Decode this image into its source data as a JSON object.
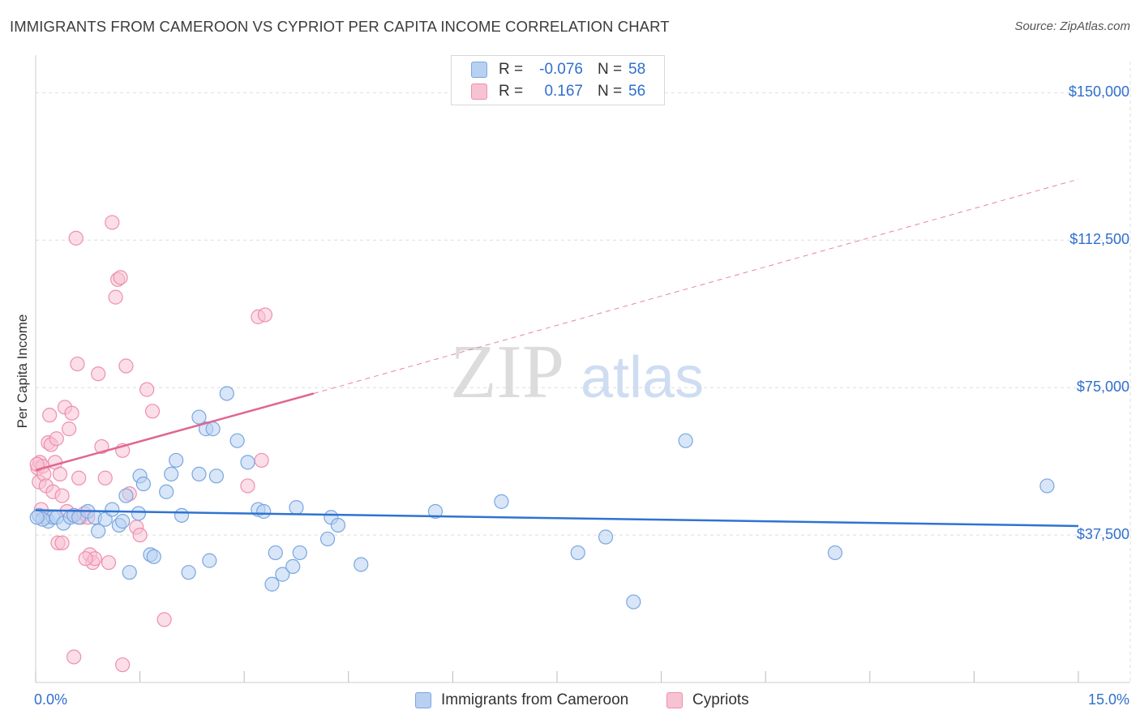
{
  "title": "IMMIGRANTS FROM CAMEROON VS CYPRIOT PER CAPITA INCOME CORRELATION CHART",
  "source": "Source: ZipAtlas.com",
  "watermark": {
    "zip": "ZIP",
    "atlas": "atlas"
  },
  "legend_top": {
    "rows": [
      {
        "r_label": "R =",
        "r_value": "-0.076",
        "n_label": "N =",
        "n_value": "58"
      },
      {
        "r_label": "R =",
        "r_value": "0.167",
        "n_label": "N =",
        "n_value": "56"
      }
    ]
  },
  "legend_bottom": [
    {
      "label": "Immigrants from Cameroon"
    },
    {
      "label": "Cypriots"
    }
  ],
  "colors": {
    "blue_fill": "#b8d1f2",
    "blue_stroke": "#7aa6e0",
    "blue_line": "#2f73d0",
    "pink_fill": "#f7c3d3",
    "pink_stroke": "#ee8fae",
    "pink_line": "#e0668f",
    "tick_text": "#2f6fce",
    "grid": "#dddddd"
  },
  "chart_data": {
    "type": "scatter",
    "title": "IMMIGRANTS FROM CAMEROON VS CYPRIOT PER CAPITA INCOME CORRELATION CHART",
    "xlabel": "",
    "ylabel": "Per Capita Income",
    "xlim": [
      0,
      15
    ],
    "ylim": [
      0,
      157500
    ],
    "x_tick_labels": [
      "0.0%",
      "15.0%"
    ],
    "y_ticks": [
      37500,
      75000,
      112500,
      150000
    ],
    "y_tick_labels": [
      "$37,500",
      "$75,000",
      "$112,500",
      "$150,000"
    ],
    "grid": true,
    "legend_position": "top-center",
    "series": [
      {
        "name": "Immigrants from Cameroon",
        "points": [
          [
            0.05,
            42500
          ],
          [
            0.18,
            41000
          ],
          [
            0.25,
            42000
          ],
          [
            0.3,
            42000
          ],
          [
            0.4,
            40500
          ],
          [
            0.5,
            42000
          ],
          [
            0.55,
            42500
          ],
          [
            0.62,
            42000
          ],
          [
            0.75,
            43500
          ],
          [
            0.85,
            42000
          ],
          [
            0.9,
            38500
          ],
          [
            1.0,
            41500
          ],
          [
            1.1,
            44000
          ],
          [
            1.2,
            40000
          ],
          [
            1.25,
            41000
          ],
          [
            1.3,
            47500
          ],
          [
            1.35,
            28000
          ],
          [
            1.48,
            43000
          ],
          [
            1.5,
            52500
          ],
          [
            1.55,
            50500
          ],
          [
            1.65,
            32500
          ],
          [
            1.7,
            32000
          ],
          [
            1.88,
            48500
          ],
          [
            1.95,
            53000
          ],
          [
            2.02,
            56500
          ],
          [
            2.1,
            42500
          ],
          [
            2.2,
            28000
          ],
          [
            2.35,
            53000
          ],
          [
            2.35,
            67500
          ],
          [
            2.45,
            64500
          ],
          [
            2.5,
            31000
          ],
          [
            2.55,
            64500
          ],
          [
            2.6,
            52500
          ],
          [
            2.75,
            73500
          ],
          [
            2.9,
            61500
          ],
          [
            3.05,
            56000
          ],
          [
            3.2,
            44000
          ],
          [
            3.28,
            43500
          ],
          [
            3.4,
            25000
          ],
          [
            3.45,
            33000
          ],
          [
            3.55,
            27500
          ],
          [
            3.7,
            29500
          ],
          [
            3.75,
            44500
          ],
          [
            3.8,
            33000
          ],
          [
            4.2,
            36500
          ],
          [
            4.25,
            42000
          ],
          [
            4.35,
            40000
          ],
          [
            4.68,
            30000
          ],
          [
            5.75,
            43500
          ],
          [
            6.7,
            46000
          ],
          [
            7.8,
            33000
          ],
          [
            8.2,
            37000
          ],
          [
            8.6,
            20500
          ],
          [
            9.35,
            61500
          ],
          [
            11.5,
            33000
          ],
          [
            14.55,
            50000
          ],
          [
            0.1,
            41500
          ],
          [
            0.02,
            42000
          ]
        ]
      },
      {
        "name": "Cypriots",
        "points": [
          [
            0.03,
            54500
          ],
          [
            0.05,
            51000
          ],
          [
            0.06,
            56000
          ],
          [
            0.1,
            55000
          ],
          [
            0.12,
            53000
          ],
          [
            0.15,
            50000
          ],
          [
            0.18,
            61000
          ],
          [
            0.2,
            68000
          ],
          [
            0.22,
            60500
          ],
          [
            0.25,
            48500
          ],
          [
            0.28,
            56000
          ],
          [
            0.3,
            62000
          ],
          [
            0.32,
            35500
          ],
          [
            0.35,
            53000
          ],
          [
            0.38,
            47500
          ],
          [
            0.42,
            70000
          ],
          [
            0.45,
            43500
          ],
          [
            0.48,
            64500
          ],
          [
            0.52,
            68500
          ],
          [
            0.55,
            42500
          ],
          [
            0.58,
            113000
          ],
          [
            0.6,
            81000
          ],
          [
            0.62,
            52000
          ],
          [
            0.65,
            42000
          ],
          [
            0.7,
            43000
          ],
          [
            0.75,
            42000
          ],
          [
            0.78,
            32500
          ],
          [
            0.82,
            30500
          ],
          [
            0.85,
            31500
          ],
          [
            0.9,
            78500
          ],
          [
            0.95,
            60000
          ],
          [
            1.0,
            52000
          ],
          [
            1.05,
            30500
          ],
          [
            1.1,
            117000
          ],
          [
            1.15,
            98000
          ],
          [
            1.18,
            102500
          ],
          [
            1.22,
            103000
          ],
          [
            1.25,
            59000
          ],
          [
            1.3,
            80500
          ],
          [
            1.35,
            48000
          ],
          [
            1.45,
            39500
          ],
          [
            1.5,
            37500
          ],
          [
            1.6,
            74500
          ],
          [
            1.68,
            69000
          ],
          [
            1.85,
            16000
          ],
          [
            0.55,
            6500
          ],
          [
            1.25,
            4500
          ],
          [
            3.05,
            50000
          ],
          [
            3.2,
            93000
          ],
          [
            3.3,
            93500
          ],
          [
            3.25,
            56500
          ],
          [
            0.15,
            42000
          ],
          [
            0.38,
            35500
          ],
          [
            0.72,
            31500
          ],
          [
            0.08,
            44000
          ],
          [
            0.02,
            55500
          ]
        ]
      }
    ],
    "trend_lines": [
      {
        "series": "Immigrants from Cameroon",
        "x": [
          0,
          15
        ],
        "y": [
          43800,
          39800
        ],
        "style": "solid"
      },
      {
        "series": "Cypriots",
        "x": [
          0,
          4.0
        ],
        "y": [
          54000,
          73500
        ],
        "style": "solid"
      },
      {
        "series": "Cypriots",
        "x": [
          4.0,
          15
        ],
        "y": [
          73500,
          128000
        ],
        "style": "dashed"
      }
    ]
  }
}
